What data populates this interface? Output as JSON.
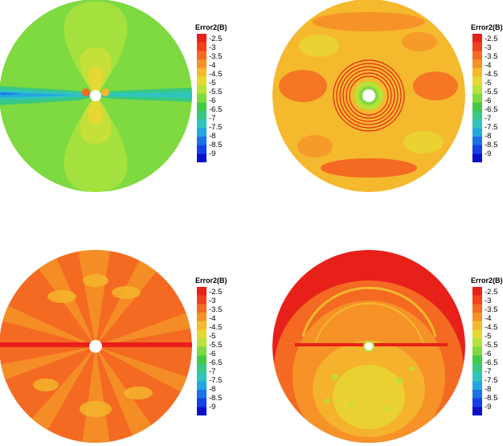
{
  "panels": [
    {
      "id": "top-left",
      "colorbar": {
        "title": "Error2(B)",
        "ticks": [
          "-2.5",
          "-3",
          "-3.5",
          "-4",
          "-4.5",
          "-5",
          "-5.5",
          "-6",
          "-6.5",
          "-7",
          "-7.5",
          "-8",
          "-8.5",
          "-9"
        ]
      },
      "dominant_level": "-5"
    },
    {
      "id": "top-right",
      "colorbar": {
        "title": "Error2(B)",
        "ticks": [
          "-2.5",
          "-3",
          "-3.5",
          "-4",
          "-4.5",
          "-5",
          "-5.5",
          "-6",
          "-6.5",
          "-7",
          "-7.5",
          "-8",
          "-8.5",
          "-9"
        ]
      },
      "dominant_level": "-3.5"
    },
    {
      "id": "bottom-left",
      "colorbar": {
        "title": "Error2(B)",
        "ticks": [
          "-2.5",
          "-3",
          "-3.5",
          "-4",
          "-4.5",
          "-5",
          "-5.5",
          "-6",
          "-6.5",
          "-7",
          "-7.5",
          "-8",
          "-8.5",
          "-9"
        ]
      },
      "dominant_level": "-3"
    },
    {
      "id": "bottom-right",
      "colorbar": {
        "title": "Error2(B)",
        "ticks": [
          "-2.5",
          "-3",
          "-3.5",
          "-4",
          "-4.5",
          "-5",
          "-5.5",
          "-6",
          "-6.5",
          "-7",
          "-7.5",
          "-8",
          "-8.5",
          "-9"
        ]
      },
      "dominant_level": "-3"
    }
  ],
  "palette": [
    "#e8201a",
    "#f0421c",
    "#f46a22",
    "#f69228",
    "#f5b92e",
    "#e6d833",
    "#b7e23a",
    "#7fd940",
    "#45c945",
    "#39c883",
    "#30c4bd",
    "#23a6e0",
    "#1a72e6",
    "#1540e8",
    "#0a10c8"
  ]
}
